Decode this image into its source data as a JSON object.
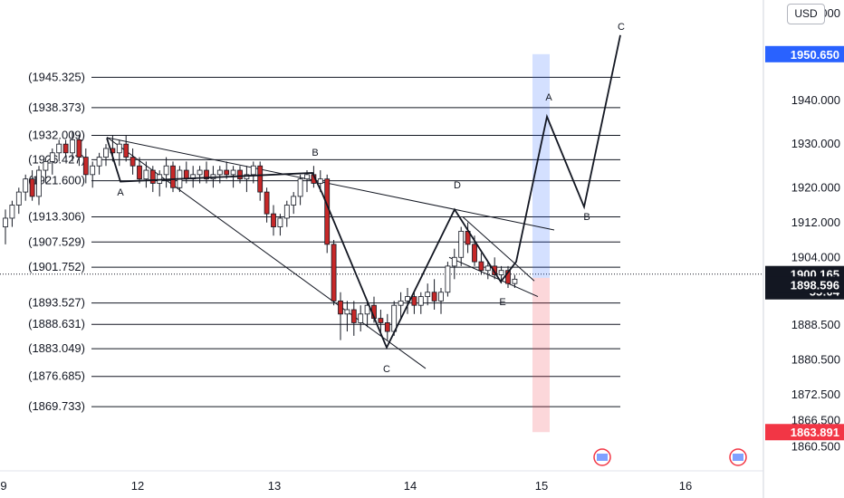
{
  "currency": "USD",
  "chart_data": {
    "type": "candlestick",
    "title": "",
    "x_ticks": [
      "9",
      "12",
      "13",
      "14",
      "15",
      "16"
    ],
    "y_ticks": [
      "1960.000",
      "1950.650",
      "1940.000",
      "1930.000",
      "1920.000",
      "1912.000",
      "1904.000",
      "1900.165",
      "1898.596",
      "1888.500",
      "1880.500",
      "1872.500",
      "1866.500",
      "1863.891",
      "1860.500"
    ],
    "ylim": [
      1857.5,
      1961
    ],
    "price_badges": [
      {
        "value": "1950.650",
        "color": "#2962ff"
      },
      {
        "value": "1900.165",
        "color": "#131722"
      },
      {
        "value": "55:04",
        "color": "#131722"
      },
      {
        "value": "1898.596",
        "color": "#131722"
      },
      {
        "value": "1863.891",
        "color": "#f23645"
      }
    ],
    "horizontal_levels": [
      {
        "label": "(1945.325)",
        "value": 1945.325
      },
      {
        "label": "(1938.373)",
        "value": 1938.373
      },
      {
        "label": "(1932.009)",
        "value": 1932.009
      },
      {
        "label": "(1926.427)",
        "value": 1926.427
      },
      {
        "label": "(1921.600)",
        "value": 1921.6
      },
      {
        "label": "(1913.306)",
        "value": 1913.306
      },
      {
        "label": "(1907.529)",
        "value": 1907.529
      },
      {
        "label": "(1901.752)",
        "value": 1901.752
      },
      {
        "label": "(1893.527)",
        "value": 1893.527
      },
      {
        "label": "(1888.631)",
        "value": 1888.631
      },
      {
        "label": "(1883.049)",
        "value": 1883.049
      },
      {
        "label": "(1876.685)",
        "value": 1876.685
      },
      {
        "label": "(1869.733)",
        "value": 1869.733
      }
    ],
    "wave_labels": [
      "A",
      "B",
      "C",
      "D",
      "E",
      "A",
      "B",
      "C"
    ],
    "candles_ohlc": [
      [
        1911,
        1915,
        1907,
        1913
      ],
      [
        1913,
        1917,
        1911,
        1916
      ],
      [
        1916,
        1920,
        1914,
        1919
      ],
      [
        1919,
        1923,
        1917,
        1922
      ],
      [
        1922,
        1924,
        1917,
        1918
      ],
      [
        1918,
        1925,
        1916,
        1924
      ],
      [
        1924,
        1927,
        1921,
        1926
      ],
      [
        1926,
        1929,
        1923,
        1928
      ],
      [
        1928,
        1931,
        1926,
        1930
      ],
      [
        1930,
        1931,
        1927,
        1928
      ],
      [
        1928,
        1933,
        1926,
        1931
      ],
      [
        1931,
        1932,
        1925,
        1927
      ],
      [
        1927,
        1929,
        1921,
        1923
      ],
      [
        1923,
        1926,
        1920,
        1925
      ],
      [
        1925,
        1928,
        1923,
        1927
      ],
      [
        1927,
        1930,
        1925,
        1929
      ],
      [
        1929,
        1932,
        1926,
        1928
      ],
      [
        1928,
        1931,
        1925,
        1930
      ],
      [
        1930,
        1932,
        1926,
        1927
      ],
      [
        1927,
        1929,
        1923,
        1925
      ],
      [
        1925,
        1927,
        1921,
        1922
      ],
      [
        1922,
        1926,
        1920,
        1924
      ],
      [
        1924,
        1925,
        1919,
        1921
      ],
      [
        1921,
        1924,
        1918,
        1923
      ],
      [
        1923,
        1927,
        1920,
        1925
      ],
      [
        1925,
        1926,
        1919,
        1920
      ],
      [
        1920,
        1925,
        1919,
        1924
      ],
      [
        1924,
        1926,
        1921,
        1922
      ],
      [
        1922,
        1925,
        1920,
        1923
      ],
      [
        1923,
        1925,
        1921,
        1924
      ],
      [
        1924,
        1926,
        1921,
        1922
      ],
      [
        1922,
        1925,
        1920,
        1923
      ],
      [
        1923,
        1925,
        1921,
        1924
      ],
      [
        1924,
        1926,
        1922,
        1923
      ],
      [
        1923,
        1925,
        1920,
        1924
      ],
      [
        1924,
        1925,
        1921,
        1922
      ],
      [
        1922,
        1925,
        1919,
        1923
      ],
      [
        1923,
        1926,
        1921,
        1925
      ],
      [
        1925,
        1926,
        1917,
        1919
      ],
      [
        1919,
        1920,
        1912,
        1914
      ],
      [
        1914,
        1916,
        1909,
        1911
      ],
      [
        1911,
        1914,
        1909,
        1913
      ],
      [
        1913,
        1917,
        1911,
        1916
      ],
      [
        1916,
        1919,
        1914,
        1918
      ],
      [
        1918,
        1923,
        1916,
        1922
      ],
      [
        1922,
        1924,
        1919,
        1923
      ],
      [
        1923,
        1925,
        1920,
        1921
      ],
      [
        1921,
        1924,
        1919,
        1922
      ],
      [
        1922,
        1923,
        1905,
        1907
      ],
      [
        1907,
        1908,
        1893,
        1894
      ],
      [
        1894,
        1896,
        1885,
        1891
      ],
      [
        1891,
        1894,
        1887,
        1892
      ],
      [
        1892,
        1894,
        1886,
        1889
      ],
      [
        1889,
        1893,
        1887,
        1891
      ],
      [
        1891,
        1894,
        1888,
        1893
      ],
      [
        1893,
        1895,
        1889,
        1890
      ],
      [
        1890,
        1892,
        1886,
        1889
      ],
      [
        1889,
        1891,
        1885,
        1887
      ],
      [
        1887,
        1894,
        1886,
        1893
      ],
      [
        1893,
        1896,
        1890,
        1894
      ],
      [
        1894,
        1897,
        1891,
        1895
      ],
      [
        1895,
        1896,
        1891,
        1893
      ],
      [
        1893,
        1896,
        1891,
        1895
      ],
      [
        1895,
        1898,
        1893,
        1896
      ],
      [
        1896,
        1899,
        1892,
        1894
      ],
      [
        1894,
        1897,
        1891,
        1896
      ],
      [
        1896,
        1903,
        1895,
        1902
      ],
      [
        1902,
        1906,
        1899,
        1904
      ],
      [
        1904,
        1911,
        1902,
        1910
      ],
      [
        1910,
        1912,
        1905,
        1907
      ],
      [
        1907,
        1909,
        1902,
        1903
      ],
      [
        1903,
        1905,
        1900,
        1901
      ],
      [
        1901,
        1903,
        1899,
        1902
      ],
      [
        1902,
        1904,
        1899,
        1900
      ],
      [
        1900,
        1902,
        1898,
        1901
      ],
      [
        1901,
        1902,
        1897,
        1898
      ],
      [
        1898,
        1900,
        1897,
        1899
      ]
    ]
  }
}
